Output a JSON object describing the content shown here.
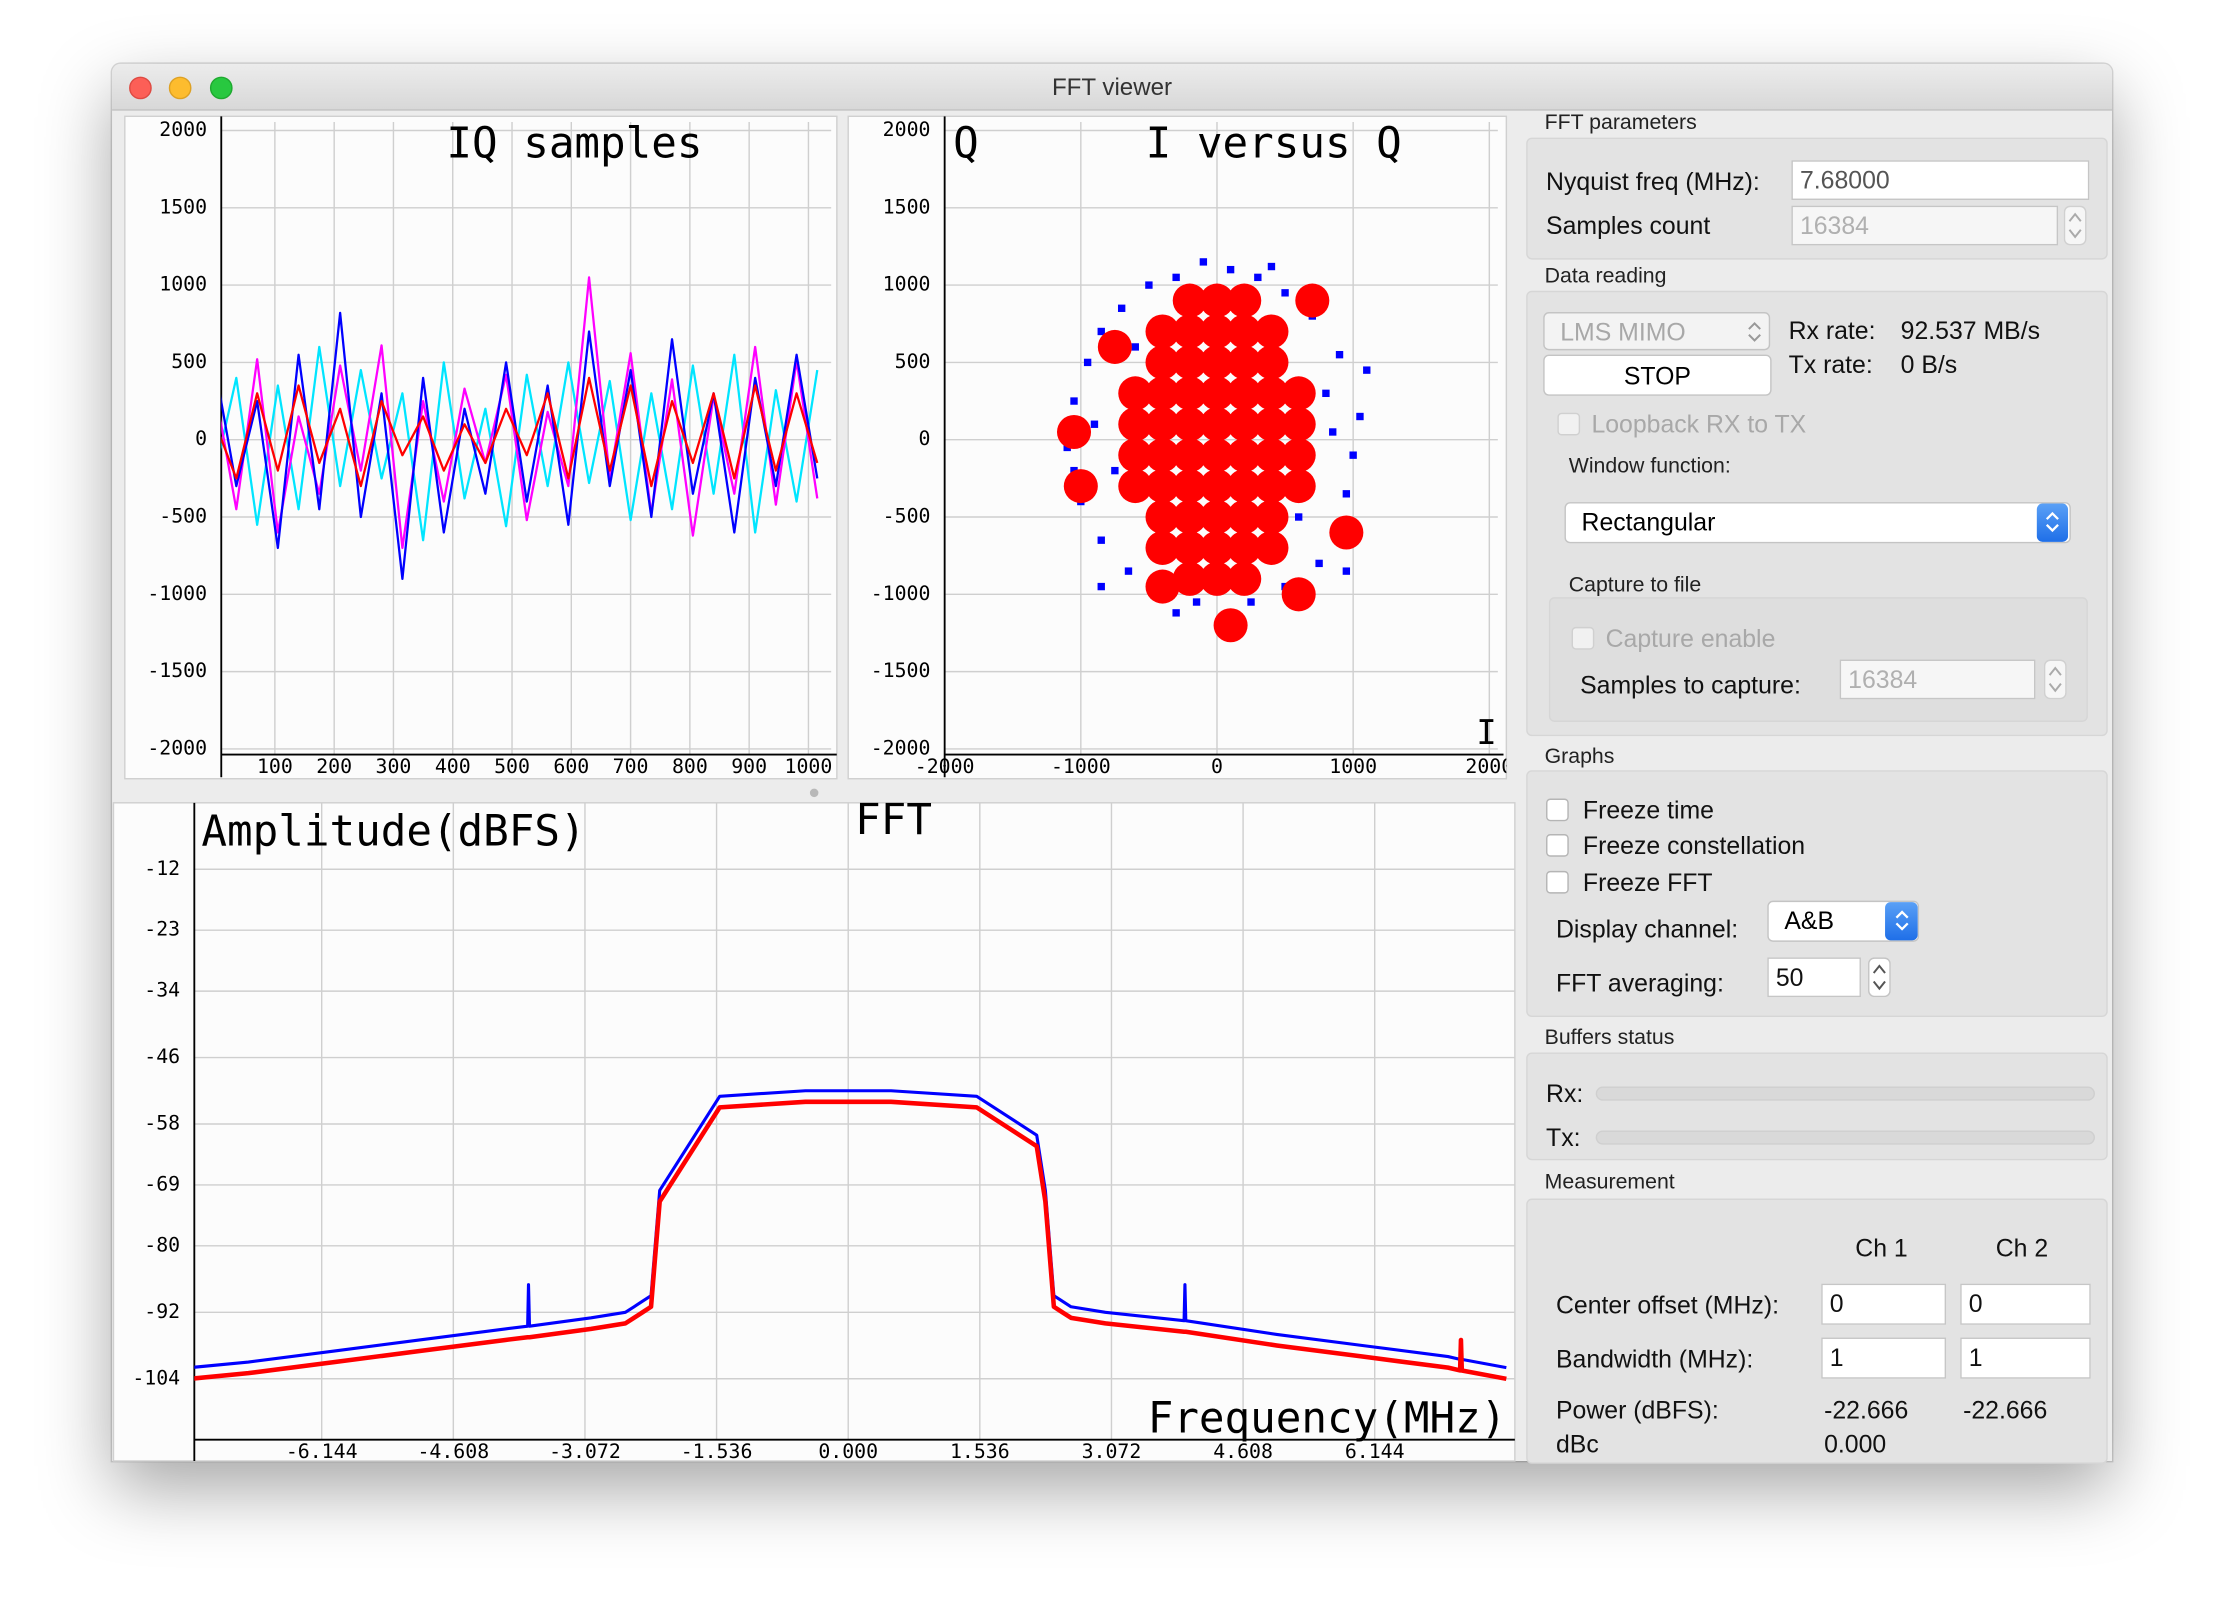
{
  "window": {
    "title": "FFT viewer"
  },
  "chart_data": [
    {
      "type": "line",
      "title": "IQ samples",
      "x": [
        0,
        35,
        70,
        105,
        140,
        175,
        210,
        245,
        280,
        315,
        350,
        385,
        420,
        455,
        490,
        525,
        560,
        595,
        630,
        665,
        700,
        735,
        770,
        805,
        840,
        875,
        910,
        945,
        980,
        1015
      ],
      "series": [
        {
          "color": "#00e5ff",
          "values": [
            -200,
            400,
            -550,
            350,
            -450,
            600,
            -300,
            450,
            -250,
            300,
            -650,
            500,
            -380,
            200,
            -560,
            420,
            -300,
            500,
            -280,
            380,
            -520,
            300,
            -450,
            480,
            -350,
            550,
            -600,
            320,
            -400,
            450
          ]
        },
        {
          "color": "#ff00ff",
          "values": [
            300,
            -450,
            520,
            -600,
            150,
            -350,
            480,
            -200,
            610,
            -700,
            250,
            -400,
            330,
            -150,
            420,
            -520,
            180,
            -300,
            1050,
            -250,
            560,
            -480,
            390,
            -620,
            280,
            -350,
            600,
            -420,
            510,
            -380
          ]
        },
        {
          "color": "#0000ff",
          "values": [
            450,
            -300,
            250,
            -700,
            550,
            -450,
            820,
            -500,
            300,
            -900,
            400,
            -600,
            200,
            -350,
            500,
            -400,
            350,
            -550,
            700,
            -300,
            450,
            -500,
            650,
            -350,
            300,
            -600,
            400,
            -300,
            550,
            -250
          ]
        },
        {
          "color": "#ff0000",
          "values": [
            100,
            -250,
            300,
            -200,
            350,
            -150,
            200,
            -300,
            250,
            -100,
            150,
            -200,
            100,
            -150,
            200,
            -100,
            300,
            -250,
            400,
            -200,
            350,
            -300,
            250,
            -150,
            300,
            -250,
            350,
            -200,
            300,
            -150
          ]
        }
      ],
      "xlim": [
        0,
        1024
      ],
      "ylim": [
        -2000,
        2000
      ],
      "xticks": [
        100,
        200,
        300,
        400,
        500,
        600,
        700,
        800,
        900,
        1000
      ],
      "yticks": [
        2000,
        1500,
        1000,
        500,
        0,
        -500,
        -1000,
        -1500,
        -2000
      ],
      "grid": true
    },
    {
      "type": "scatter",
      "title": "I versus Q",
      "y_label": "Q",
      "x_label": "I",
      "series": [
        {
          "color": "#0000ff",
          "x": [
            -1100,
            -1050,
            -950,
            -850,
            -700,
            -500,
            -300,
            -100,
            100,
            300,
            500,
            700,
            900,
            1100,
            1050,
            1000,
            950,
            900,
            750,
            500,
            250,
            50,
            -150,
            -400,
            -650,
            -850,
            -1000,
            -1050,
            -750,
            800,
            -600,
            600,
            950,
            -850,
            -300,
            400,
            -200,
            200,
            -900,
            850
          ],
          "values": [
            -50,
            250,
            500,
            700,
            850,
            1000,
            1050,
            1150,
            1100,
            1050,
            950,
            800,
            550,
            450,
            150,
            -100,
            -350,
            -600,
            -800,
            -950,
            -1050,
            -1150,
            -1050,
            -1000,
            -850,
            -650,
            -400,
            -200,
            -200,
            300,
            600,
            -500,
            -850,
            -950,
            -1120,
            1120,
            850,
            -850,
            100,
            50
          ]
        },
        {
          "color": "#ff0000",
          "x": [
            -200,
            0,
            200,
            -400,
            -200,
            0,
            200,
            400,
            -400,
            -200,
            0,
            200,
            400,
            -600,
            -400,
            -200,
            0,
            200,
            400,
            600,
            -600,
            -400,
            -200,
            0,
            200,
            400,
            600,
            -600,
            -400,
            -200,
            0,
            200,
            400,
            600,
            -600,
            -400,
            -200,
            0,
            200,
            400,
            600,
            -400,
            -200,
            0,
            200,
            400,
            -400,
            -200,
            0,
            200,
            400,
            -200,
            0,
            200,
            -1000,
            950,
            600,
            100,
            -750,
            -1050,
            700,
            -400
          ],
          "values": [
            900,
            900,
            900,
            700,
            700,
            700,
            700,
            700,
            500,
            500,
            500,
            500,
            500,
            300,
            300,
            300,
            300,
            300,
            300,
            300,
            100,
            100,
            100,
            100,
            100,
            100,
            100,
            -100,
            -100,
            -100,
            -100,
            -100,
            -100,
            -100,
            -300,
            -300,
            -300,
            -300,
            -300,
            -300,
            -300,
            -500,
            -500,
            -500,
            -500,
            -500,
            -700,
            -700,
            -700,
            -700,
            -700,
            -900,
            -900,
            -900,
            -300,
            -600,
            -1000,
            -1200,
            600,
            50,
            900,
            -950
          ]
        }
      ],
      "xlim": [
        -2000,
        2000
      ],
      "ylim": [
        -2000,
        2000
      ],
      "xticks": [
        -2000,
        -1000,
        0,
        1000,
        2000
      ],
      "yticks": [
        2000,
        1500,
        1000,
        500,
        0,
        -500,
        -1000,
        -1500,
        -2000
      ],
      "grid": true
    },
    {
      "type": "line",
      "title": "FFT",
      "y_label": "Amplitude(dBFS)",
      "x_label": "Frequency(MHz)",
      "x": [
        -7.68,
        -7,
        -6,
        -5,
        -4,
        -3.74,
        -3.73,
        -3.72,
        -3,
        -2.6,
        -2.5,
        -2.4,
        -2.3,
        -2.2,
        -1.5,
        -0.5,
        0.5,
        1.5,
        2.2,
        2.3,
        2.4,
        2.5,
        2.6,
        3,
        3.92,
        3.93,
        3.94,
        5,
        6,
        7,
        7.14,
        7.15,
        7.16,
        7.68
      ],
      "series": [
        {
          "color": "#0000ff",
          "values": [
            -102,
            -101,
            -99,
            -97,
            -95,
            -94.5,
            -87,
            -94.5,
            -93,
            -92,
            -91,
            -90,
            -89,
            -70,
            -53,
            -52,
            -52,
            -53,
            -60,
            -70,
            -89,
            -90,
            -91,
            -92,
            -93.5,
            -87,
            -93.5,
            -96,
            -98,
            -100,
            -100.5,
            -100.5,
            -100.5,
            -102
          ]
        },
        {
          "color": "#ff0000",
          "values": [
            -104,
            -103,
            -101,
            -99,
            -97,
            -96.5,
            -96.5,
            -96.5,
            -95,
            -94,
            -93,
            -92,
            -91,
            -72,
            -55,
            -54,
            -54,
            -55,
            -62,
            -72,
            -91,
            -92,
            -93,
            -94,
            -95.5,
            -95.5,
            -95.5,
            -98,
            -100,
            -102,
            -102.5,
            -97,
            -102.5,
            -104
          ]
        }
      ],
      "xlim": [
        -7.68,
        7.68
      ],
      "ylim": [
        -115,
        0
      ],
      "xticks": [
        -6.144,
        -4.608,
        -3.072,
        -1.536,
        {
          "value": 0,
          "label": "0.000"
        },
        1.536,
        3.072,
        4.608,
        6.144
      ],
      "yticks": [
        -12,
        -23,
        -34,
        -46,
        -58,
        -69,
        -80,
        -92,
        -104
      ],
      "grid": true
    }
  ],
  "panel": {
    "fft_parameters": {
      "title": "FFT parameters",
      "nyquist_label": "Nyquist freq (MHz):",
      "nyquist_value": "7.68000",
      "samples_label": "Samples count",
      "samples_value": "16384"
    },
    "data_reading": {
      "title": "Data reading",
      "device": "LMS MIMO",
      "stop": "STOP",
      "rx_label": "Rx rate:",
      "rx_value": "92.537 MB/s",
      "tx_label": "Tx rate:",
      "tx_value": "0 B/s",
      "loopback": "Loopback RX to TX",
      "window_label": "Window function:",
      "window_value": "Rectangular",
      "capture_title": "Capture to file",
      "capture_enable": "Capture enable",
      "samples_capture_label": "Samples to capture:",
      "samples_capture_value": "16384"
    },
    "graphs": {
      "title": "Graphs",
      "freeze_time": "Freeze time",
      "freeze_constellation": "Freeze constellation",
      "freeze_fft": "Freeze FFT",
      "display_label": "Display channel:",
      "display_value": "A&B",
      "averaging_label": "FFT averaging:",
      "averaging_value": "50"
    },
    "buffers": {
      "title": "Buffers status",
      "rx": "Rx:",
      "tx": "Tx:"
    },
    "measurement": {
      "title": "Measurement",
      "ch1": "Ch 1",
      "ch2": "Ch 2",
      "center_label": "Center offset (MHz):",
      "center_ch1": "0",
      "center_ch2": "0",
      "bw_label": "Bandwidth (MHz):",
      "bw_ch1": "1",
      "bw_ch2": "1",
      "power_label": "Power (dBFS):",
      "power_ch1": "-22.666",
      "power_ch2": "-22.666",
      "dbc_label": "dBc",
      "dbc_value": "0.000"
    }
  }
}
